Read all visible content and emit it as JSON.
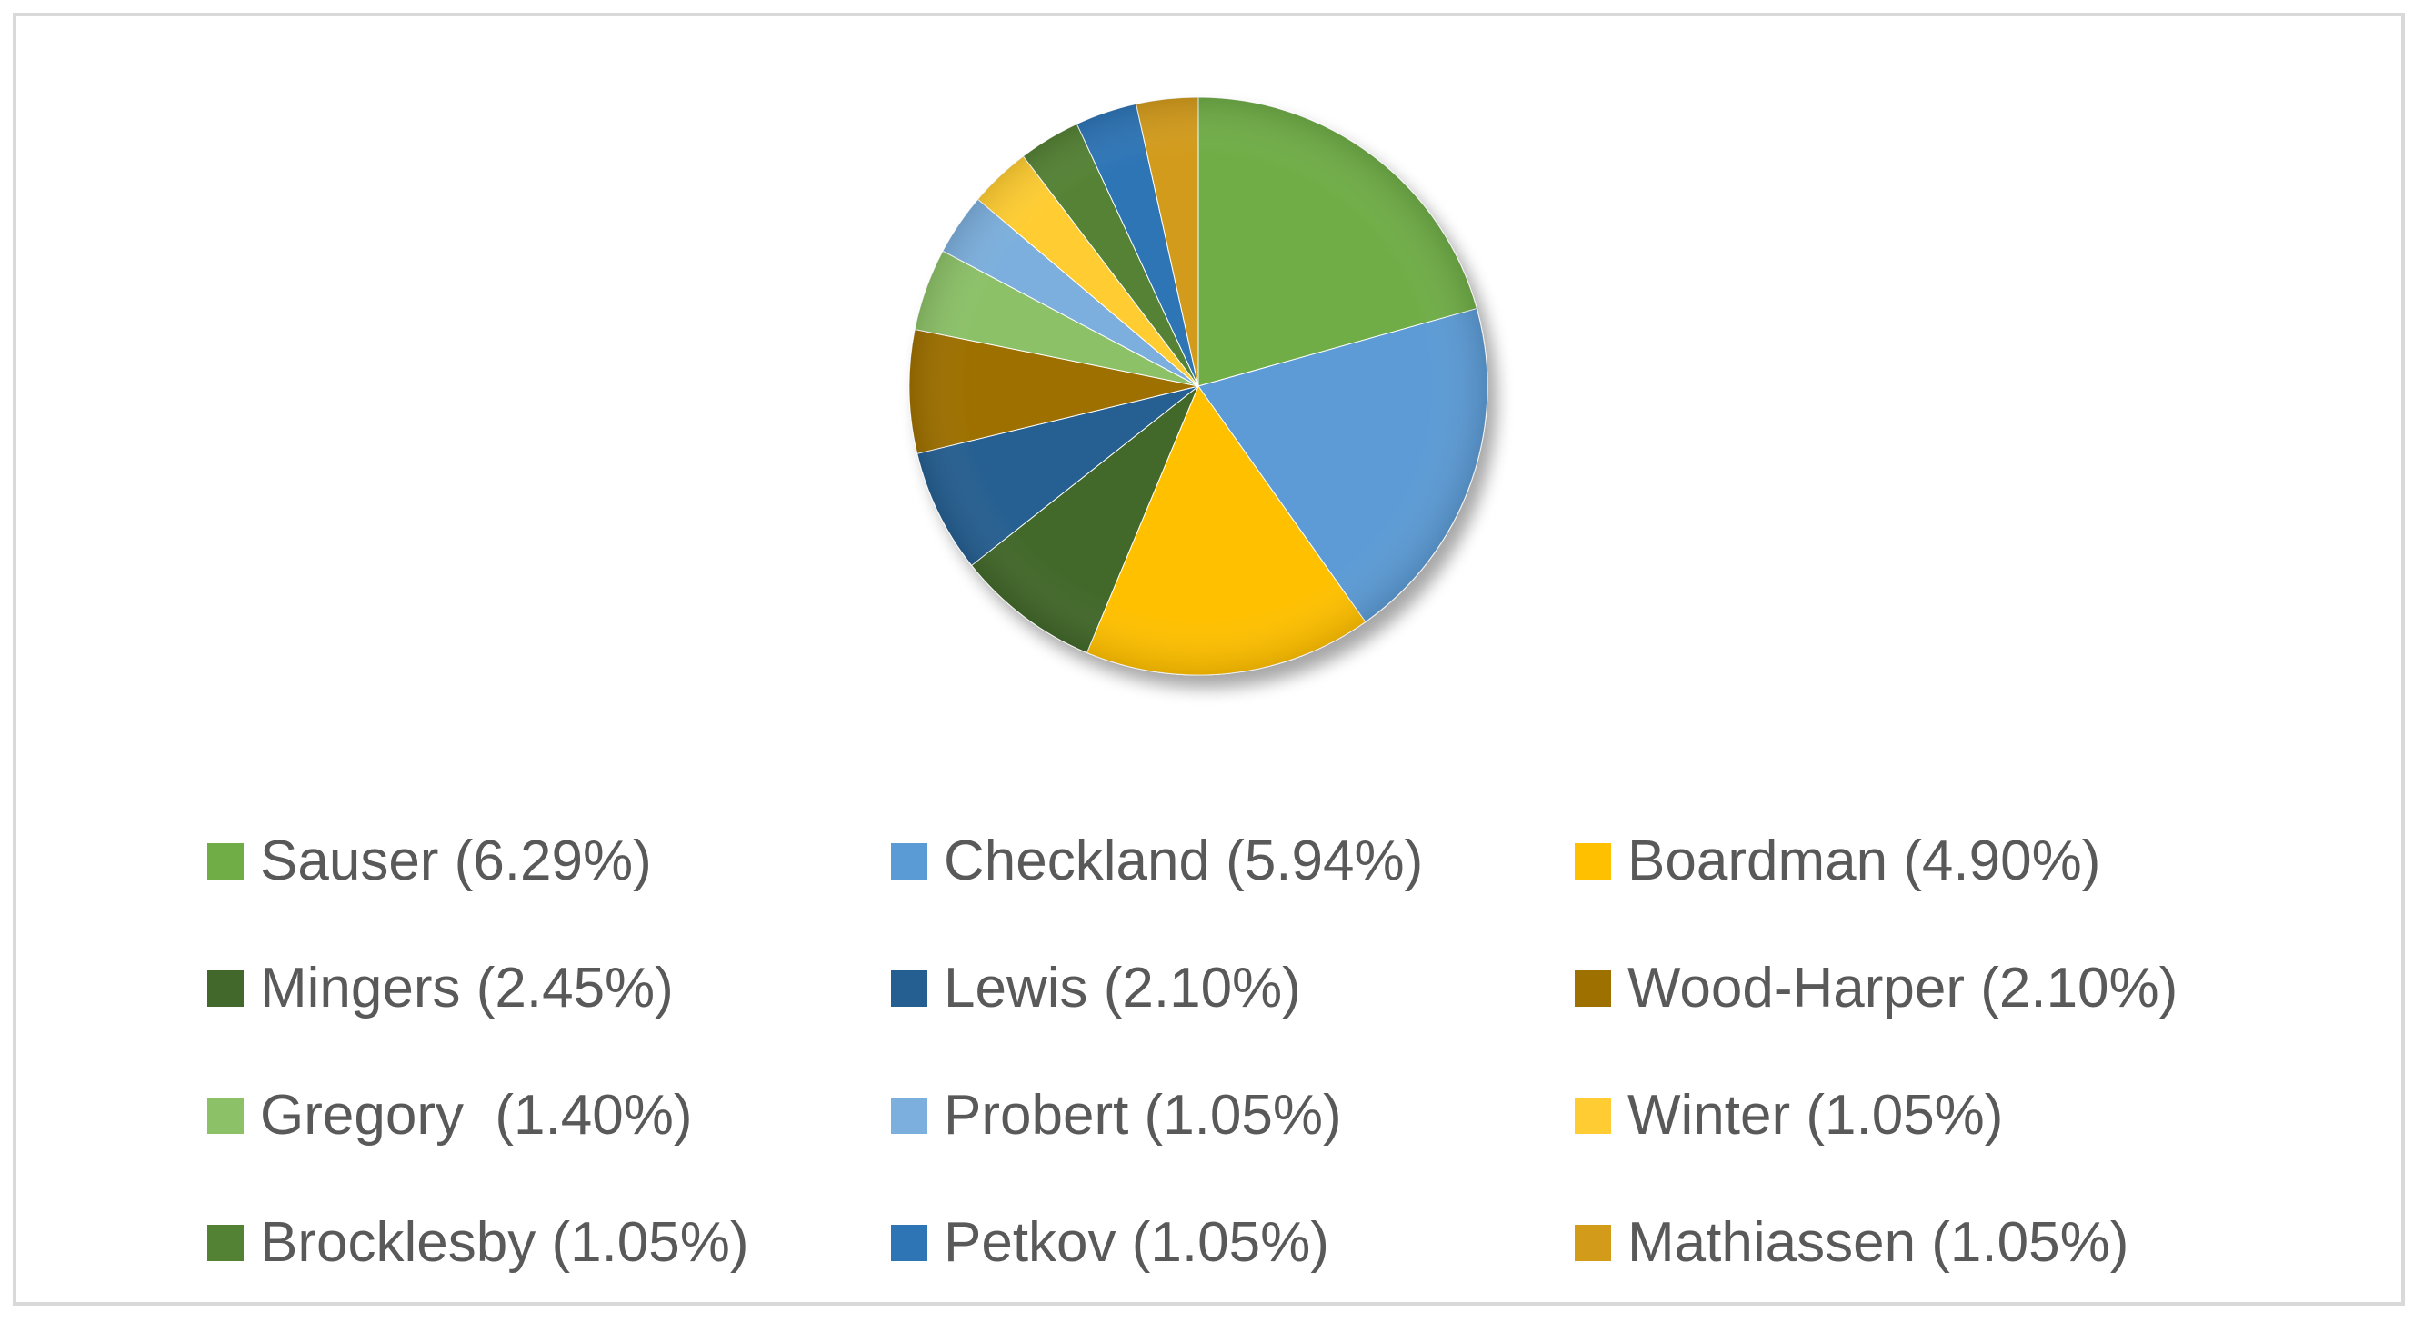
{
  "chart_data": {
    "type": "pie",
    "title": "",
    "slices": [
      {
        "label": "Sauser (6.29%)",
        "value": 6.29,
        "color": "#70ad47"
      },
      {
        "label": "Checkland (5.94%)",
        "value": 5.94,
        "color": "#5b9bd5"
      },
      {
        "label": "Boardman (4.90%)",
        "value": 4.9,
        "color": "#ffc000"
      },
      {
        "label": "Mingers (2.45%)",
        "value": 2.45,
        "color": "#43682b"
      },
      {
        "label": "Lewis (2.10%)",
        "value": 2.1,
        "color": "#255e91"
      },
      {
        "label": "Wood-Harper (2.10%)",
        "value": 2.1,
        "color": "#9e7000"
      },
      {
        "label": "Gregory  (1.40%)",
        "value": 1.4,
        "color": "#8cc168"
      },
      {
        "label": "Probert (1.05%)",
        "value": 1.05,
        "color": "#7cafdd"
      },
      {
        "label": "Winter (1.05%)",
        "value": 1.05,
        "color": "#ffcd33"
      },
      {
        "label": "Brocklesby (1.05%)",
        "value": 1.05,
        "color": "#548235"
      },
      {
        "label": "Petkov (1.05%)",
        "value": 1.05,
        "color": "#2e75b6"
      },
      {
        "label": "Mathiassen (1.05%)",
        "value": 1.05,
        "color": "#d29b1a"
      }
    ],
    "legend_position": "bottom"
  }
}
